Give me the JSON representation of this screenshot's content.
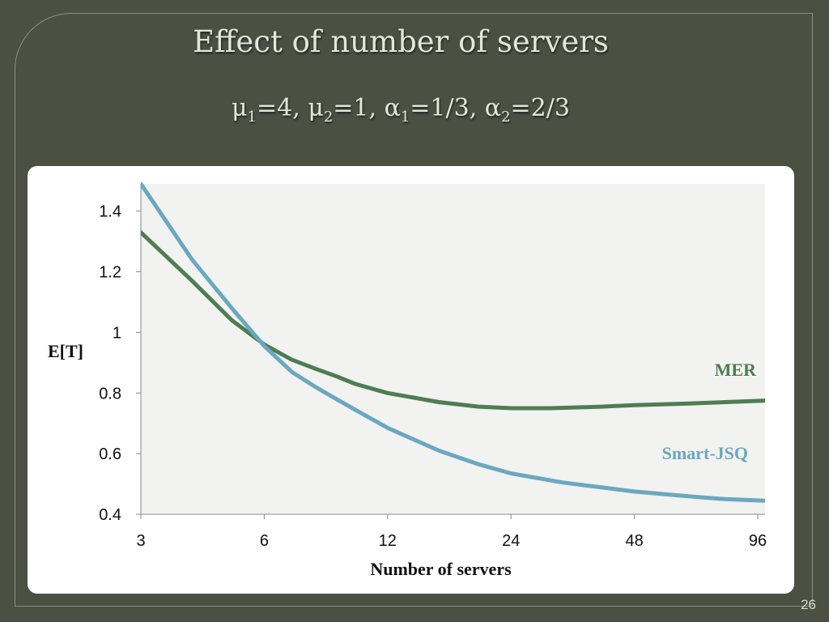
{
  "slide": {
    "title": "Effect of number of servers",
    "params": [
      {
        "sym": "μ",
        "sub": "1",
        "val": "=4"
      },
      {
        "sym": "μ",
        "sub": "2",
        "val": "=1"
      },
      {
        "sym": "α",
        "sub": "1",
        "val": "=1/3"
      },
      {
        "sym": "α",
        "sub": "2",
        "val": "=2/3"
      }
    ],
    "page_number": "26"
  },
  "chart_data": {
    "type": "line",
    "xlabel": "Number of servers",
    "ylabel": "E[T]",
    "x_scale": "log2",
    "x_ticks": [
      3,
      6,
      12,
      24,
      48,
      96
    ],
    "y_ticks": [
      0.4,
      0.6,
      0.8,
      1,
      1.2,
      1.4
    ],
    "y_tick_labels": [
      "0.4",
      "0.6",
      "0.8",
      "1",
      "1.2",
      "1.4"
    ],
    "xlim": [
      3,
      100
    ],
    "ylim": [
      0.4,
      1.49
    ],
    "grid": false,
    "plot_background": "#f2f2f0",
    "series": [
      {
        "name": "MER",
        "color": "#4e7d52",
        "points": [
          [
            3,
            1.33
          ],
          [
            4,
            1.17
          ],
          [
            5,
            1.04
          ],
          [
            6,
            0.96
          ],
          [
            7,
            0.91
          ],
          [
            8,
            0.88
          ],
          [
            9,
            0.855
          ],
          [
            10,
            0.83
          ],
          [
            12,
            0.8
          ],
          [
            16,
            0.77
          ],
          [
            20,
            0.755
          ],
          [
            24,
            0.75
          ],
          [
            30,
            0.75
          ],
          [
            40,
            0.755
          ],
          [
            48,
            0.76
          ],
          [
            64,
            0.765
          ],
          [
            80,
            0.77
          ],
          [
            100,
            0.775
          ]
        ]
      },
      {
        "name": "Smart-JSQ",
        "color": "#6aa8c0",
        "points": [
          [
            3,
            1.49
          ],
          [
            4,
            1.24
          ],
          [
            5,
            1.08
          ],
          [
            6,
            0.955
          ],
          [
            7,
            0.87
          ],
          [
            8,
            0.82
          ],
          [
            9,
            0.78
          ],
          [
            10,
            0.745
          ],
          [
            12,
            0.685
          ],
          [
            16,
            0.61
          ],
          [
            20,
            0.565
          ],
          [
            24,
            0.535
          ],
          [
            32,
            0.505
          ],
          [
            48,
            0.475
          ],
          [
            64,
            0.46
          ],
          [
            80,
            0.45
          ],
          [
            100,
            0.445
          ]
        ]
      }
    ]
  }
}
